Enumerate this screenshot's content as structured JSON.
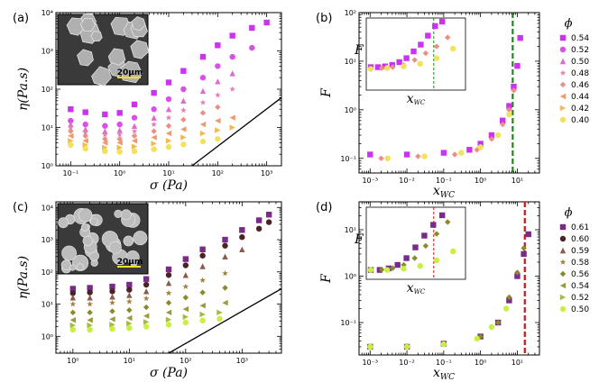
{
  "panels": [
    {
      "id": "a",
      "label": "(a)",
      "ylabel": "η(Pa.s)",
      "xlabel": "σ (Pa)",
      "xlim": [
        0.05,
        2000
      ],
      "ylim": [
        1,
        10000
      ],
      "xticks": [
        "10⁻¹",
        "10⁰",
        "10¹",
        "10²",
        "10³"
      ],
      "yticks": [
        "10⁰",
        "10¹",
        "10²",
        "10³",
        "10⁴"
      ],
      "inset": "sem-polyhedral",
      "scale": "20μm"
    },
    {
      "id": "b",
      "label": "(b)",
      "ylabel": "F",
      "xlabel": "x_WC",
      "xlim": [
        0.0005,
        40
      ],
      "ylim": [
        0.05,
        100
      ],
      "xticks": [
        "10⁻³",
        "10⁻²",
        "10⁻¹",
        "10⁰",
        "10¹"
      ],
      "yticks": [
        "10⁻¹",
        "10⁰",
        "10¹",
        "10²"
      ],
      "vline": 7.5,
      "vline_color": "#1a8a1a"
    },
    {
      "id": "c",
      "label": "(c)",
      "ylabel": "η(Pa.s)",
      "xlabel": "σ (Pa)",
      "xlim": [
        0.5,
        5000
      ],
      "ylim": [
        0.3,
        15000
      ],
      "xticks": [
        "10⁰",
        "10¹",
        "10²",
        "10³"
      ],
      "yticks": [
        "10⁰",
        "10¹",
        "10²",
        "10³",
        "10⁴"
      ],
      "inset": "sem-spherical",
      "scale": "20μm"
    },
    {
      "id": "d",
      "label": "(d)",
      "ylabel": "F",
      "xlabel": "x_WC",
      "xlim": [
        0.0005,
        40
      ],
      "ylim": [
        0.02,
        40
      ],
      "xticks": [
        "10⁻³",
        "10⁻²",
        "10⁻¹",
        "10⁰",
        "10¹"
      ],
      "yticks": [
        "10⁻¹",
        "10⁰",
        "10¹"
      ],
      "vline": 16,
      "vline_color": "#dd1111"
    }
  ],
  "legend_top": {
    "title": "ϕ",
    "entries": [
      "0.54",
      "0.52",
      "0.50",
      "0.48",
      "0.46",
      "0.44",
      "0.42",
      "0.40"
    ],
    "colors": [
      "#cc33ee",
      "#d94fe8",
      "#e06ad0",
      "#e37fb2",
      "#eb8f86",
      "#f09a6a",
      "#f4b84e",
      "#f2e15a"
    ],
    "markers": [
      "square",
      "circle",
      "triangle",
      "star",
      "diamond",
      "triangle-left",
      "triangle-right",
      "circle"
    ]
  },
  "legend_bottom": {
    "title": "ϕ",
    "entries": [
      "0.61",
      "0.60",
      "0.59",
      "0.58",
      "0.56",
      "0.54",
      "0.52",
      "0.50"
    ],
    "colors": [
      "#7a2a8a",
      "#4a2424",
      "#8a5a4a",
      "#a0803a",
      "#8a8a2a",
      "#9a9a3a",
      "#a8b842",
      "#c8f040"
    ],
    "markers": [
      "square",
      "circle",
      "triangle",
      "star",
      "diamond",
      "triangle-left",
      "triangle-right",
      "circle"
    ]
  },
  "chart_data": [
    {
      "type": "scatter",
      "panel": "a",
      "title": "",
      "xlabel": "σ (Pa)",
      "ylabel": "η(Pa.s)",
      "series": [
        {
          "name": "0.54",
          "x": [
            0.1,
            0.2,
            0.5,
            1,
            2,
            5,
            10,
            20,
            50,
            100,
            200,
            500,
            1000
          ],
          "y": [
            30,
            25,
            22,
            24,
            40,
            80,
            150,
            300,
            700,
            1400,
            2500,
            4000,
            5500
          ]
        },
        {
          "name": "0.52",
          "x": [
            0.1,
            0.2,
            0.5,
            1,
            2,
            5,
            10,
            20,
            50,
            100,
            200,
            500
          ],
          "y": [
            15,
            12,
            11,
            12,
            18,
            30,
            55,
            100,
            200,
            400,
            700,
            1200
          ]
        },
        {
          "name": "0.50",
          "x": [
            0.1,
            0.2,
            0.5,
            1,
            2,
            5,
            10,
            20,
            50,
            100,
            200
          ],
          "y": [
            12,
            9,
            8,
            8.5,
            11,
            18,
            30,
            50,
            90,
            160,
            260
          ]
        },
        {
          "name": "0.48",
          "x": [
            0.1,
            0.2,
            0.5,
            1,
            2,
            5,
            10,
            20,
            50,
            100,
            200
          ],
          "y": [
            10,
            7.5,
            6.5,
            6.5,
            8,
            12,
            18,
            28,
            45,
            70,
            100
          ]
        },
        {
          "name": "0.46",
          "x": [
            0.1,
            0.2,
            0.5,
            1,
            2,
            5,
            10,
            20,
            50,
            100
          ],
          "y": [
            8,
            6,
            5,
            5,
            6,
            8,
            11,
            16,
            24,
            34
          ]
        },
        {
          "name": "0.44",
          "x": [
            0.1,
            0.2,
            0.5,
            1,
            2,
            5,
            10,
            20,
            50,
            100,
            200
          ],
          "y": [
            6,
            4.5,
            4,
            4,
            4.5,
            5.5,
            7,
            9,
            12,
            15,
            18
          ]
        },
        {
          "name": "0.42",
          "x": [
            0.1,
            0.2,
            0.5,
            1,
            2,
            5,
            10,
            20,
            50,
            100,
            200
          ],
          "y": [
            4.5,
            3.5,
            3,
            3,
            3.2,
            3.8,
            4.5,
            5.5,
            7,
            8.5,
            10
          ]
        },
        {
          "name": "0.40",
          "x": [
            0.1,
            0.2,
            0.5,
            1,
            2,
            5,
            10,
            20,
            50,
            100
          ],
          "y": [
            3.5,
            2.8,
            2.4,
            2.3,
            2.4,
            2.7,
            3.1,
            3.6,
            4.3,
            5
          ]
        }
      ]
    },
    {
      "type": "scatter",
      "panel": "b",
      "xlabel": "x_WC",
      "ylabel": "F",
      "series": [
        {
          "name": "0.54",
          "x": [
            0.001,
            0.01,
            0.1,
            0.5,
            1,
            2,
            4,
            6,
            8,
            10,
            12
          ],
          "y": [
            0.12,
            0.12,
            0.13,
            0.15,
            0.2,
            0.3,
            0.6,
            1.2,
            3,
            8,
            30
          ]
        },
        {
          "name": "0.46",
          "x": [
            0.002,
            0.02,
            0.2,
            0.8,
            2,
            4,
            6,
            8
          ],
          "y": [
            0.1,
            0.11,
            0.12,
            0.15,
            0.25,
            0.5,
            1,
            2.5
          ]
        },
        {
          "name": "0.40",
          "x": [
            0.003,
            0.03,
            0.3,
            1,
            3,
            6
          ],
          "y": [
            0.1,
            0.11,
            0.13,
            0.17,
            0.3,
            0.8
          ]
        }
      ]
    },
    {
      "type": "scatter",
      "panel": "c",
      "xlabel": "σ (Pa)",
      "ylabel": "η(Pa.s)",
      "series": [
        {
          "name": "0.61",
          "x": [
            1,
            2,
            5,
            10,
            20,
            50,
            100,
            200,
            500,
            1000,
            2000,
            3000
          ],
          "y": [
            30,
            32,
            35,
            40,
            60,
            120,
            250,
            500,
            1000,
            2000,
            4000,
            6000
          ]
        },
        {
          "name": "0.60",
          "x": [
            1,
            2,
            5,
            10,
            20,
            50,
            100,
            200,
            500,
            1000,
            2000,
            3000
          ],
          "y": [
            22,
            23,
            25,
            28,
            40,
            80,
            160,
            320,
            650,
            1200,
            2200,
            3500
          ]
        },
        {
          "name": "0.59",
          "x": [
            1,
            2,
            5,
            10,
            20,
            50,
            100,
            200,
            500,
            1000
          ],
          "y": [
            16,
            16,
            17,
            19,
            25,
            45,
            80,
            150,
            300,
            500
          ]
        },
        {
          "name": "0.58",
          "x": [
            1,
            2,
            5,
            10,
            20,
            50,
            100,
            200,
            500
          ],
          "y": [
            10,
            10,
            11,
            12,
            15,
            22,
            35,
            55,
            90
          ]
        },
        {
          "name": "0.56",
          "x": [
            1,
            2,
            5,
            10,
            20,
            50,
            100,
            200,
            500
          ],
          "y": [
            5.5,
            5.5,
            6,
            6.5,
            8,
            11,
            16,
            23,
            32
          ]
        },
        {
          "name": "0.54",
          "x": [
            1,
            2,
            5,
            10,
            20,
            50,
            100,
            200,
            500
          ],
          "y": [
            3.2,
            3.2,
            3.4,
            3.7,
            4.3,
            5.5,
            7,
            9,
            11
          ]
        },
        {
          "name": "0.52",
          "x": [
            1,
            2,
            5,
            10,
            20,
            50,
            100,
            200,
            400
          ],
          "y": [
            2.2,
            2.2,
            2.3,
            2.5,
            2.8,
            3.3,
            4,
            4.8,
            5.5
          ]
        },
        {
          "name": "0.50",
          "x": [
            1,
            2,
            5,
            10,
            20,
            50,
            100,
            200,
            400
          ],
          "y": [
            1.6,
            1.6,
            1.7,
            1.8,
            2,
            2.3,
            2.7,
            3.1,
            3.5
          ]
        }
      ]
    },
    {
      "type": "scatter",
      "panel": "d",
      "xlabel": "x_WC",
      "ylabel": "F",
      "series": [
        {
          "name": "0.61",
          "x": [
            0.001,
            0.01,
            0.1,
            1,
            3,
            6,
            10,
            15,
            20
          ],
          "y": [
            0.03,
            0.03,
            0.035,
            0.05,
            0.1,
            0.3,
            1,
            3,
            8
          ]
        },
        {
          "name": "0.56",
          "x": [
            0.001,
            0.01,
            0.1,
            1,
            3,
            6,
            10,
            15
          ],
          "y": [
            0.03,
            0.031,
            0.036,
            0.05,
            0.1,
            0.35,
            1.2,
            4
          ]
        },
        {
          "name": "0.50",
          "x": [
            0.001,
            0.01,
            0.1,
            0.8,
            2,
            5
          ],
          "y": [
            0.03,
            0.03,
            0.034,
            0.045,
            0.08,
            0.2
          ]
        }
      ]
    }
  ]
}
